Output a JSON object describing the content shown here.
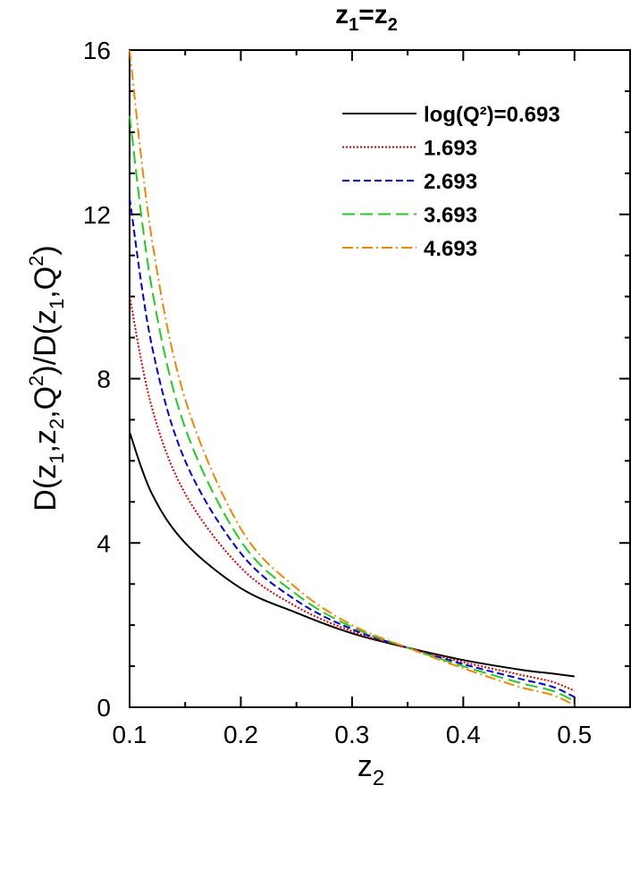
{
  "chart_data": {
    "type": "line",
    "title_parts": {
      "z1": "z",
      "sub1": "1",
      "eq": "=",
      "z2": "z",
      "sub2": "2"
    },
    "xlabel_parts": {
      "base": "z",
      "sub": "2"
    },
    "ylabel_parts": {
      "p1": "D(z",
      "s1": "1",
      "p2": ",z",
      "s2": "2",
      "p3": ",Q",
      "e1": "2",
      "p4": ")/D(z",
      "s3": "1",
      "p5": ",Q",
      "e2": "2",
      "p6": ")"
    },
    "xlim": [
      0.1,
      0.55
    ],
    "ylim": [
      0,
      16
    ],
    "x_ticks": [
      0.1,
      0.2,
      0.3,
      0.4,
      0.5
    ],
    "x_tick_labels": [
      "0.1",
      "0.2",
      "0.3",
      "0.4",
      "0.5"
    ],
    "y_ticks": [
      0,
      4,
      8,
      12,
      16
    ],
    "y_tick_labels": [
      "0",
      "4",
      "8",
      "12",
      "16"
    ],
    "grid": false,
    "legend_position": "top-right",
    "x": [
      0.1,
      0.12,
      0.15,
      0.2,
      0.25,
      0.3,
      0.35,
      0.4,
      0.45,
      0.48,
      0.5
    ],
    "series": [
      {
        "name": "log(Q²)=0.693",
        "color": "#000000",
        "dash": "solid",
        "values": [
          6.7,
          5.2,
          4.0,
          2.9,
          2.3,
          1.8,
          1.45,
          1.15,
          0.92,
          0.82,
          0.75
        ]
      },
      {
        "name": "1.693",
        "color": "#dd0000",
        "dash": "dotted",
        "values": [
          10.0,
          7.3,
          5.2,
          3.4,
          2.45,
          1.85,
          1.45,
          1.1,
          0.8,
          0.62,
          0.4
        ]
      },
      {
        "name": "2.693",
        "color": "#0000dd",
        "dash": "dashed",
        "values": [
          12.4,
          8.8,
          6.0,
          3.75,
          2.6,
          1.9,
          1.45,
          1.05,
          0.7,
          0.5,
          0.25
        ]
      },
      {
        "name": "3.693",
        "color": "#22cc22",
        "dash": "long-dashed",
        "values": [
          14.4,
          10.2,
          6.8,
          4.05,
          2.75,
          1.95,
          1.45,
          1.0,
          0.6,
          0.4,
          0.15
        ]
      },
      {
        "name": "4.693",
        "color": "#ee8800",
        "dash": "dash-dot",
        "values": [
          16.0,
          11.4,
          7.5,
          4.35,
          2.9,
          2.0,
          1.45,
          0.95,
          0.5,
          0.3,
          0.05
        ]
      }
    ]
  }
}
